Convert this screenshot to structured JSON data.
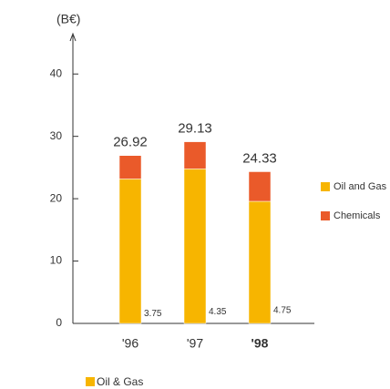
{
  "chart_data": {
    "type": "stacked-bar",
    "y_label": "(B€)",
    "categories": [
      "'96",
      "'97",
      "'98"
    ],
    "series": [
      {
        "name": "Oil and Gas",
        "color": "#f7b500",
        "values": [
          23.17,
          24.78,
          19.58
        ]
      },
      {
        "name": "Chemicals",
        "color": "#ea5a2a",
        "values": [
          3.75,
          4.35,
          4.75
        ]
      }
    ],
    "totals": [
      26.92,
      29.13,
      24.33
    ],
    "bold_category": 2,
    "ylim": [
      0,
      45
    ],
    "yticks": [
      0,
      10,
      20,
      30,
      40
    ],
    "legend": "right",
    "footer_legend": "Oil & Gas"
  }
}
